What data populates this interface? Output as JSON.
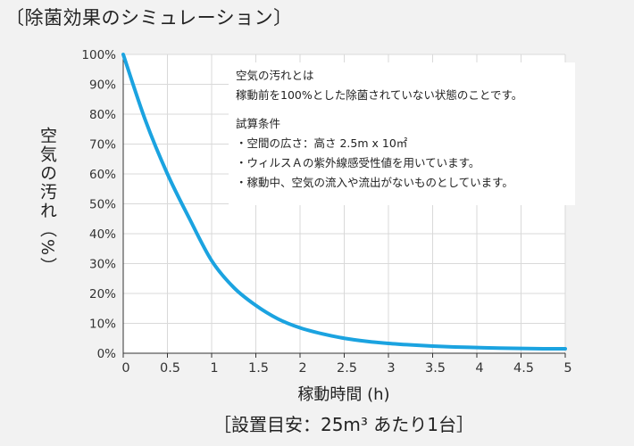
{
  "page": {
    "title": "〔除菌効果のシミュレーション〕",
    "footer": "［設置目安：25m³ あたり1台］"
  },
  "info": {
    "heading1": "空気の汚れとは",
    "line1": "稼動前を100%とした除菌されていない状態のことです。",
    "heading2": "試算条件",
    "conditions": [
      "・空間の広さ：高さ 2.5m x 10㎡",
      "・ウィルスＡの紫外線感受性値を用いています。",
      "・稼動中、空気の流入や流出がないものとしています。"
    ]
  },
  "chart_data": {
    "type": "line",
    "xlabel": "稼動時間 (h)",
    "ylabel": "空気の汚れ（%）",
    "xlim": [
      0,
      5
    ],
    "ylim": [
      0,
      100
    ],
    "x_ticks": [
      "0",
      "0.5",
      "1",
      "1.5",
      "2",
      "2.5",
      "3",
      "3.5",
      "4",
      "4.5",
      "5"
    ],
    "y_ticks": [
      "0%",
      "10%",
      "20%",
      "30%",
      "40%",
      "50%",
      "60%",
      "70%",
      "80%",
      "90%",
      "100%"
    ],
    "grid": true,
    "series": [
      {
        "color": "#1ba3e0",
        "x": [
          0,
          0.25,
          0.5,
          0.75,
          1,
          1.25,
          1.5,
          1.75,
          2,
          2.25,
          2.5,
          2.75,
          3,
          3.25,
          3.5,
          3.75,
          4,
          4.25,
          4.5,
          4.75,
          5
        ],
        "y": [
          100,
          78,
          60,
          45,
          31,
          22,
          16,
          11.5,
          8.5,
          6.5,
          5,
          4,
          3.3,
          2.8,
          2.4,
          2.1,
          1.9,
          1.7,
          1.6,
          1.5,
          1.5
        ]
      }
    ]
  }
}
